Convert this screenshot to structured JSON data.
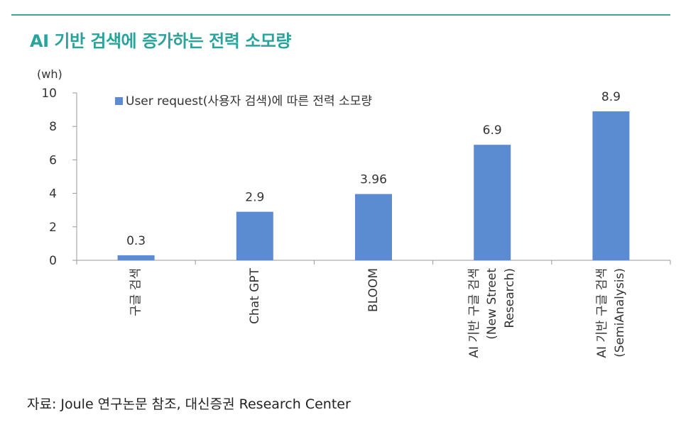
{
  "title": "AI 기반 검색에 증가하는 전력 소모량",
  "source": "자료: Joule 연구논문 참조, 대신증권 Research Center",
  "colors": {
    "accent": "#2aa39a",
    "bar": "#5b8bd0",
    "axis": "#999999",
    "text": "#333333"
  },
  "chart_data": {
    "type": "bar",
    "y_unit_label": "(wh)",
    "ylim": [
      0,
      10
    ],
    "yticks": [
      0,
      2,
      4,
      6,
      8,
      10
    ],
    "grid": false,
    "legend_position": "top-left",
    "categories": [
      [
        "구글 검색"
      ],
      [
        "Chat GPT"
      ],
      [
        "BLOOM"
      ],
      [
        "AI 기반 구글 검색",
        "(New Street",
        "Research)"
      ],
      [
        "AI 기반 구글 검색",
        "(SemiAnalysis)"
      ]
    ],
    "series": [
      {
        "name": "User request(사용자 검색)에 따른 전력 소모량",
        "values": [
          0.3,
          2.9,
          3.96,
          6.9,
          8.9
        ],
        "labels": [
          "0.3",
          "2.9",
          "3.96",
          "6.9",
          "8.9"
        ]
      }
    ]
  }
}
